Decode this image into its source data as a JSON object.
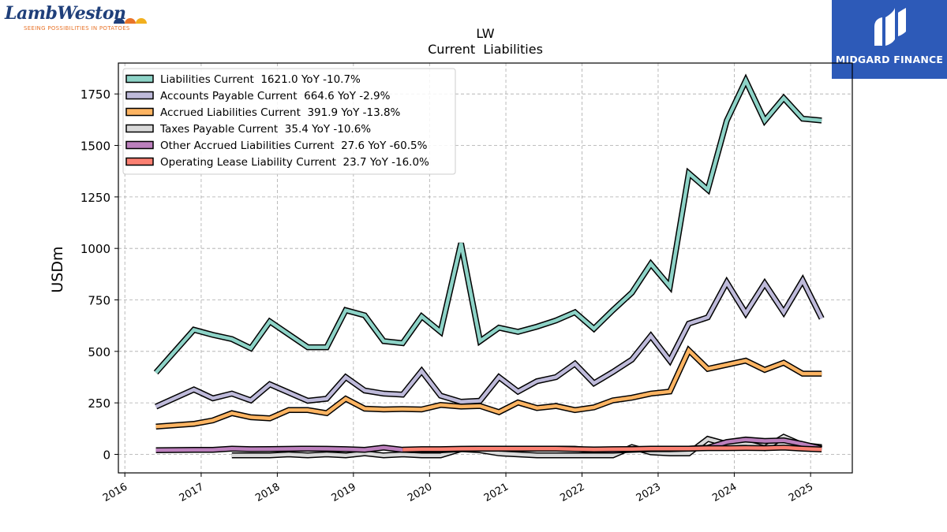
{
  "branding": {
    "company_logo_text": "LambWeston",
    "company_tagline": "SEEING POSSIBILITIES IN POTATOES",
    "partner_logo_text": "MIDGARD FINANCE",
    "partner_bg_color": "#2d5ab8"
  },
  "chart_data": {
    "type": "line",
    "title": "LW",
    "subtitle": "Current  Liabilities",
    "xlabel": "",
    "ylabel": "USDm",
    "xlim": [
      "2015-12-01",
      "2025-07-20"
    ],
    "ylim": [
      -90,
      1900
    ],
    "y_ticks": [
      0,
      250,
      500,
      750,
      1000,
      1250,
      1500,
      1750
    ],
    "x_ticks": [
      "2016",
      "2017",
      "2018",
      "2019",
      "2020",
      "2021",
      "2022",
      "2023",
      "2024",
      "2025"
    ],
    "grid": true,
    "legend_position": "top-left",
    "series": [
      {
        "name": "Liabilities Current  1621.0 YoY -10.7%",
        "color": "#8dd3c7",
        "x": [
          "2016-05-29",
          "2016-11-27",
          "2017-02-26",
          "2017-05-28",
          "2017-08-27",
          "2017-11-26",
          "2018-05-27",
          "2018-08-26",
          "2018-11-25",
          "2019-02-24",
          "2019-05-26",
          "2019-08-25",
          "2019-11-24",
          "2020-02-23",
          "2020-05-31",
          "2020-08-30",
          "2020-11-29",
          "2021-02-28",
          "2021-05-30",
          "2021-08-29",
          "2021-11-28",
          "2022-02-27",
          "2022-05-29",
          "2022-08-28",
          "2022-11-27",
          "2023-02-26",
          "2023-05-28",
          "2023-08-27",
          "2023-11-26",
          "2024-02-25",
          "2024-05-26",
          "2024-08-25",
          "2024-11-24",
          "2025-02-23"
        ],
        "y": [
          397,
          605,
          580,
          560,
          515,
          645,
          520,
          520,
          700,
          675,
          550,
          540,
          670,
          595,
          1025,
          550,
          615,
          595,
          620,
          650,
          690,
          610,
          700,
          785,
          925,
          815,
          1365,
          1285,
          1620,
          1815,
          1620,
          1730,
          1630,
          1621
        ]
      },
      {
        "name": "Accounts Payable Current  664.6 YoY -2.9%",
        "color": "#bebada",
        "x": [
          "2016-05-29",
          "2016-11-27",
          "2017-02-26",
          "2017-05-28",
          "2017-08-27",
          "2017-11-26",
          "2018-05-27",
          "2018-08-26",
          "2018-11-25",
          "2019-02-24",
          "2019-05-26",
          "2019-08-25",
          "2019-11-24",
          "2020-02-23",
          "2020-05-31",
          "2020-08-30",
          "2020-11-29",
          "2021-02-28",
          "2021-05-30",
          "2021-08-29",
          "2021-11-28",
          "2022-02-27",
          "2022-05-29",
          "2022-08-28",
          "2022-11-27",
          "2023-02-26",
          "2023-05-28",
          "2023-08-27",
          "2023-11-26",
          "2024-02-25",
          "2024-05-26",
          "2024-08-25",
          "2024-11-24",
          "2025-02-23"
        ],
        "y": [
          232,
          315,
          272,
          295,
          262,
          340,
          260,
          270,
          375,
          310,
          295,
          290,
          405,
          285,
          255,
          260,
          375,
          305,
          355,
          375,
          440,
          345,
          400,
          460,
          575,
          455,
          635,
          665,
          835,
          685,
          830,
          690,
          845,
          660
        ]
      },
      {
        "name": "Accrued Liabilities Current  391.9 YoY -13.8%",
        "color": "#fdb462",
        "x": [
          "2016-05-29",
          "2016-11-27",
          "2017-02-26",
          "2017-05-28",
          "2017-08-27",
          "2017-11-26",
          "2018-02-25",
          "2018-05-27",
          "2018-08-26",
          "2018-11-25",
          "2019-02-24",
          "2019-05-26",
          "2019-08-25",
          "2019-11-24",
          "2020-02-23",
          "2020-05-31",
          "2020-08-30",
          "2020-11-29",
          "2021-02-28",
          "2021-05-30",
          "2021-08-29",
          "2021-11-28",
          "2022-02-27",
          "2022-05-29",
          "2022-08-28",
          "2022-11-27",
          "2023-02-26",
          "2023-05-28",
          "2023-08-27",
          "2023-11-26",
          "2024-02-25",
          "2024-05-26",
          "2024-08-25",
          "2024-11-24",
          "2025-02-23"
        ],
        "y": [
          135,
          148,
          165,
          200,
          180,
          175,
          215,
          215,
          200,
          270,
          222,
          218,
          220,
          218,
          240,
          232,
          235,
          205,
          252,
          225,
          235,
          215,
          228,
          262,
          275,
          295,
          305,
          505,
          415,
          435,
          455,
          410,
          445,
          392,
          392
        ]
      },
      {
        "name": "Taxes Payable Current  35.4 YoY -10.6%",
        "color": "#d9d9d9",
        "x": [
          "2017-05-28",
          "2017-11-26",
          "2018-02-25",
          "2018-05-27",
          "2018-08-26",
          "2018-11-25",
          "2019-02-24",
          "2019-05-26",
          "2019-08-25",
          "2019-11-24",
          "2020-02-23",
          "2020-05-31",
          "2020-08-30",
          "2020-11-29",
          "2021-02-28",
          "2021-05-30",
          "2021-08-29",
          "2021-11-28",
          "2022-02-27",
          "2022-05-29",
          "2022-08-28",
          "2022-11-27",
          "2023-02-26",
          "2023-05-28",
          "2023-08-27",
          "2023-11-26",
          "2024-02-25",
          "2024-05-26",
          "2024-08-25",
          "2024-11-24",
          "2025-02-23"
        ],
        "y": [
          -5,
          -5,
          0,
          -5,
          0,
          -5,
          5,
          -5,
          0,
          -5,
          -5,
          25,
          20,
          5,
          0,
          -5,
          -5,
          -5,
          -5,
          -5,
          35,
          10,
          5,
          5,
          75,
          50,
          55,
          30,
          85,
          45,
          35
        ]
      },
      {
        "name": "Other Accrued Liabilities Current  27.6 YoY -60.5%",
        "color": "#bc80bd",
        "x": [
          "2016-05-29",
          "2016-11-27",
          "2017-02-26",
          "2017-05-28",
          "2017-08-27",
          "2017-11-26",
          "2018-05-27",
          "2018-08-26",
          "2018-11-25",
          "2019-02-24",
          "2019-05-26",
          "2019-08-25",
          "2019-11-24",
          "2020-02-23",
          "2020-05-31",
          "2020-08-30",
          "2020-11-29",
          "2021-02-28",
          "2021-05-30",
          "2021-08-29",
          "2021-11-28",
          "2022-02-27",
          "2022-05-29",
          "2022-08-28",
          "2022-11-27",
          "2023-02-26",
          "2023-05-28",
          "2023-08-27",
          "2023-11-26",
          "2024-02-25",
          "2024-05-26",
          "2024-08-25",
          "2024-11-24",
          "2025-02-23"
        ],
        "y": [
          20,
          22,
          22,
          28,
          25,
          26,
          28,
          27,
          25,
          22,
          33,
          22,
          20,
          20,
          25,
          28,
          28,
          28,
          28,
          28,
          27,
          20,
          18,
          22,
          25,
          25,
          28,
          32,
          60,
          72,
          65,
          68,
          50,
          28
        ]
      },
      {
        "name": "Operating Lease Liability Current  23.7 YoY -16.0%",
        "color": "#fb8072",
        "x": [
          "2019-08-25",
          "2019-11-24",
          "2020-02-23",
          "2020-05-31",
          "2020-08-30",
          "2020-11-29",
          "2021-02-28",
          "2021-05-30",
          "2021-08-29",
          "2021-11-28",
          "2022-02-27",
          "2022-05-29",
          "2022-08-28",
          "2022-11-27",
          "2023-02-26",
          "2023-05-28",
          "2023-08-27",
          "2023-11-26",
          "2024-02-25",
          "2024-05-26",
          "2024-08-25",
          "2024-11-24",
          "2025-02-23"
        ],
        "y": [
          23,
          25,
          25,
          27,
          28,
          28,
          28,
          28,
          28,
          26,
          24,
          25,
          26,
          28,
          28,
          28,
          30,
          30,
          31,
          30,
          33,
          28,
          24
        ]
      }
    ]
  }
}
